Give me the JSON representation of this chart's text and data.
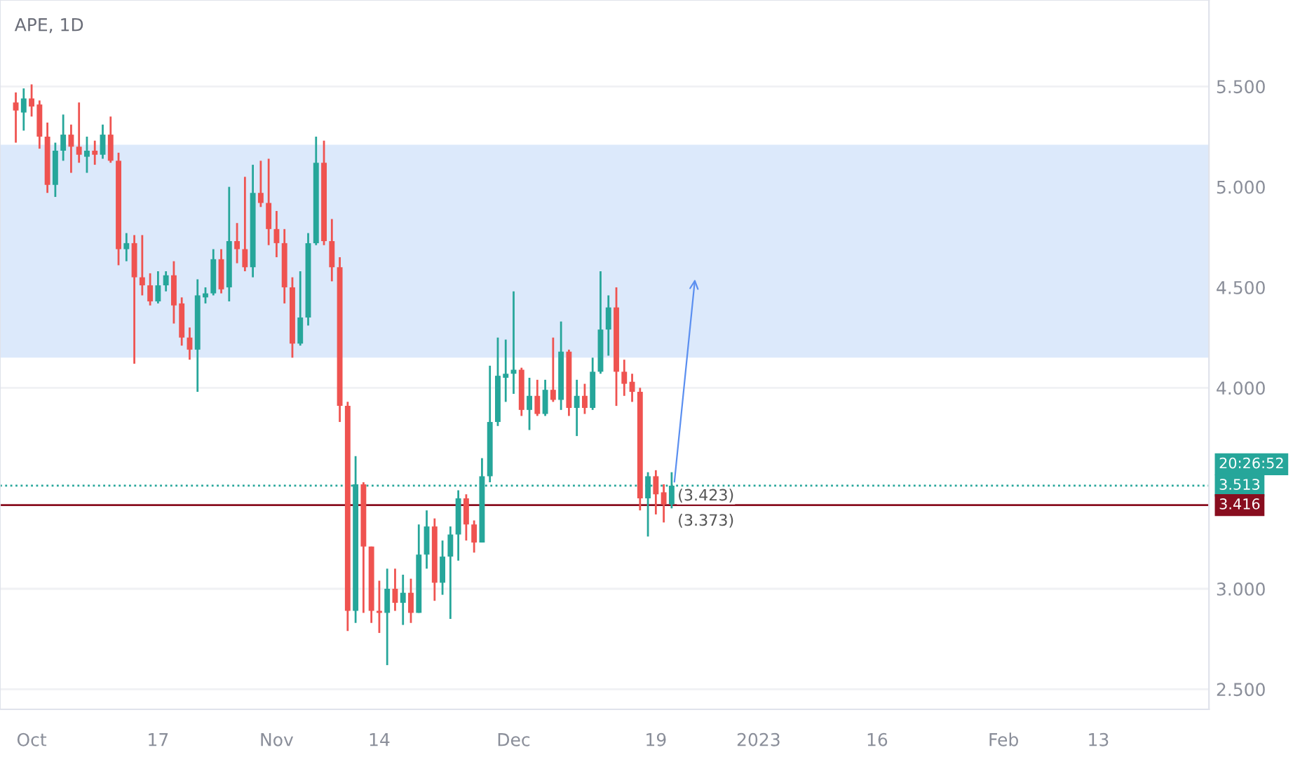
{
  "chart_data": {
    "type": "candlestick",
    "title": "APE, 1D",
    "x": [
      "2022-09-29",
      "2022-09-30",
      "2022-10-01",
      "2022-10-02",
      "2022-10-03",
      "2022-10-04",
      "2022-10-05",
      "2022-10-06",
      "2022-10-07",
      "2022-10-08",
      "2022-10-09",
      "2022-10-10",
      "2022-10-11",
      "2022-10-12",
      "2022-10-13",
      "2022-10-14",
      "2022-10-15",
      "2022-10-16",
      "2022-10-17",
      "2022-10-18",
      "2022-10-19",
      "2022-10-20",
      "2022-10-21",
      "2022-10-22",
      "2022-10-23",
      "2022-10-24",
      "2022-10-25",
      "2022-10-26",
      "2022-10-27",
      "2022-10-28",
      "2022-10-29",
      "2022-10-30",
      "2022-10-31",
      "2022-11-01",
      "2022-11-02",
      "2022-11-03",
      "2022-11-04",
      "2022-11-05",
      "2022-11-06",
      "2022-11-07",
      "2022-11-08",
      "2022-11-09",
      "2022-11-10",
      "2022-11-11",
      "2022-11-12",
      "2022-11-13",
      "2022-11-14",
      "2022-11-15",
      "2022-11-16",
      "2022-11-17",
      "2022-11-18",
      "2022-11-19",
      "2022-11-20",
      "2022-11-21",
      "2022-11-22",
      "2022-11-23",
      "2022-11-24",
      "2022-11-25",
      "2022-11-26",
      "2022-11-27",
      "2022-11-28",
      "2022-11-29",
      "2022-11-30",
      "2022-12-01",
      "2022-12-02",
      "2022-12-03",
      "2022-12-04",
      "2022-12-05",
      "2022-12-06",
      "2022-12-07",
      "2022-12-08",
      "2022-12-09",
      "2022-12-10",
      "2022-12-11",
      "2022-12-12",
      "2022-12-13",
      "2022-12-14",
      "2022-12-15",
      "2022-12-16",
      "2022-12-17",
      "2022-12-18",
      "2022-12-19",
      "2022-12-20",
      "2022-12-21"
    ],
    "ohlc": [
      [
        5.42,
        5.47,
        5.22,
        5.38
      ],
      [
        5.37,
        5.49,
        5.28,
        5.44
      ],
      [
        5.44,
        5.51,
        5.35,
        5.4
      ],
      [
        5.41,
        5.43,
        5.19,
        5.25
      ],
      [
        5.25,
        5.32,
        4.97,
        5.01
      ],
      [
        5.01,
        5.22,
        4.95,
        5.18
      ],
      [
        5.18,
        5.36,
        5.13,
        5.26
      ],
      [
        5.26,
        5.31,
        5.07,
        5.2
      ],
      [
        5.2,
        5.42,
        5.12,
        5.16
      ],
      [
        5.15,
        5.25,
        5.07,
        5.18
      ],
      [
        5.18,
        5.23,
        5.11,
        5.16
      ],
      [
        5.16,
        5.31,
        5.14,
        5.26
      ],
      [
        5.26,
        5.35,
        5.12,
        5.13
      ],
      [
        5.13,
        5.17,
        4.61,
        4.69
      ],
      [
        4.69,
        4.77,
        4.63,
        4.72
      ],
      [
        4.72,
        4.76,
        4.12,
        4.55
      ],
      [
        4.55,
        4.76,
        4.46,
        4.51
      ],
      [
        4.51,
        4.57,
        4.41,
        4.43
      ],
      [
        4.43,
        4.58,
        4.42,
        4.51
      ],
      [
        4.51,
        4.58,
        4.48,
        4.56
      ],
      [
        4.56,
        4.63,
        4.32,
        4.41
      ],
      [
        4.42,
        4.45,
        4.21,
        4.25
      ],
      [
        4.25,
        4.3,
        4.14,
        4.19
      ],
      [
        4.19,
        4.54,
        3.98,
        4.46
      ],
      [
        4.45,
        4.5,
        4.42,
        4.47
      ],
      [
        4.47,
        4.69,
        4.46,
        4.64
      ],
      [
        4.64,
        4.69,
        4.47,
        4.49
      ],
      [
        4.5,
        5.0,
        4.43,
        4.73
      ],
      [
        4.73,
        4.82,
        4.62,
        4.69
      ],
      [
        4.69,
        5.05,
        4.58,
        4.6
      ],
      [
        4.6,
        5.11,
        4.55,
        4.97
      ],
      [
        4.97,
        5.13,
        4.9,
        4.92
      ],
      [
        4.92,
        5.14,
        4.71,
        4.79
      ],
      [
        4.79,
        4.88,
        4.65,
        4.72
      ],
      [
        4.72,
        4.79,
        4.42,
        4.5
      ],
      [
        4.5,
        4.55,
        4.15,
        4.22
      ],
      [
        4.22,
        4.58,
        4.21,
        4.35
      ],
      [
        4.35,
        4.77,
        4.31,
        4.72
      ],
      [
        4.72,
        5.25,
        4.71,
        5.12
      ],
      [
        5.12,
        5.23,
        4.71,
        4.73
      ],
      [
        4.73,
        4.84,
        4.53,
        4.6
      ],
      [
        4.6,
        4.65,
        3.83,
        3.91
      ],
      [
        3.91,
        3.93,
        2.79,
        2.89
      ],
      [
        2.89,
        3.66,
        2.83,
        3.52
      ],
      [
        3.52,
        3.53,
        2.88,
        3.21
      ],
      [
        3.21,
        3.21,
        2.83,
        2.89
      ],
      [
        2.89,
        3.04,
        2.78,
        2.88
      ],
      [
        2.88,
        3.1,
        2.62,
        3.0
      ],
      [
        3.0,
        3.1,
        2.89,
        2.93
      ],
      [
        2.93,
        3.07,
        2.82,
        2.98
      ],
      [
        2.98,
        3.05,
        2.83,
        2.88
      ],
      [
        2.88,
        3.32,
        2.88,
        3.17
      ],
      [
        3.17,
        3.39,
        3.1,
        3.31
      ],
      [
        3.31,
        3.35,
        2.94,
        3.03
      ],
      [
        3.03,
        3.24,
        2.97,
        3.16
      ],
      [
        3.16,
        3.31,
        2.85,
        3.27
      ],
      [
        3.27,
        3.49,
        3.14,
        3.45
      ],
      [
        3.45,
        3.47,
        3.24,
        3.32
      ],
      [
        3.32,
        3.34,
        3.18,
        3.23
      ],
      [
        3.23,
        3.65,
        3.23,
        3.56
      ],
      [
        3.56,
        4.11,
        3.53,
        3.83
      ],
      [
        3.83,
        4.25,
        3.81,
        4.06
      ],
      [
        4.05,
        4.24,
        3.93,
        4.07
      ],
      [
        4.07,
        4.48,
        3.97,
        4.09
      ],
      [
        4.09,
        4.1,
        3.86,
        3.89
      ],
      [
        3.89,
        4.05,
        3.79,
        3.96
      ],
      [
        3.96,
        4.04,
        3.86,
        3.87
      ],
      [
        3.87,
        4.04,
        3.86,
        3.99
      ],
      [
        3.99,
        4.25,
        3.93,
        3.94
      ],
      [
        3.94,
        4.33,
        3.89,
        4.18
      ],
      [
        4.18,
        4.19,
        3.86,
        3.9
      ],
      [
        3.9,
        4.04,
        3.76,
        3.96
      ],
      [
        3.96,
        4.02,
        3.87,
        3.9
      ],
      [
        3.9,
        4.15,
        3.89,
        4.08
      ],
      [
        4.08,
        4.58,
        4.07,
        4.29
      ],
      [
        4.29,
        4.46,
        4.16,
        4.4
      ],
      [
        4.4,
        4.5,
        3.91,
        4.08
      ],
      [
        4.08,
        4.14,
        3.96,
        4.02
      ],
      [
        4.03,
        4.07,
        3.93,
        3.98
      ],
      [
        3.98,
        4.0,
        3.39,
        3.45
      ],
      [
        3.45,
        3.58,
        3.26,
        3.56
      ],
      [
        3.56,
        3.59,
        3.37,
        3.47
      ],
      [
        3.48,
        3.52,
        3.33,
        3.42
      ],
      [
        3.42,
        3.58,
        3.4,
        3.513
      ]
    ],
    "xlim": [
      "2022-09-27",
      "2023-02-27"
    ],
    "xticks": [
      {
        "value": "2022-10-01",
        "label": "Oct"
      },
      {
        "value": "2022-10-17",
        "label": "17"
      },
      {
        "value": "2022-11-01",
        "label": "Nov"
      },
      {
        "value": "2022-11-14",
        "label": "14"
      },
      {
        "value": "2022-12-01",
        "label": "Dec"
      },
      {
        "value": "2022-12-19",
        "label": "19"
      },
      {
        "value": "2023-01-01",
        "label": "2023"
      },
      {
        "value": "2023-01-16",
        "label": "16"
      },
      {
        "value": "2023-02-01",
        "label": "Feb"
      },
      {
        "value": "2023-02-13",
        "label": "13"
      }
    ],
    "ylim": [
      2.4,
      5.93
    ],
    "yticks": [
      {
        "value": 2.5,
        "label": "2.500"
      },
      {
        "value": 3,
        "label": "3.000"
      },
      {
        "value": 4,
        "label": "4.000"
      },
      {
        "value": 4.5,
        "label": "4.500"
      },
      {
        "value": 5,
        "label": "5.000"
      },
      {
        "value": 5.5,
        "label": "5.500"
      }
    ],
    "grid": "y",
    "bands": [
      {
        "axis": "y",
        "from": 4.15,
        "to": 5.21,
        "color": "#dce9fb"
      }
    ],
    "ref_lines": [
      {
        "axis": "y",
        "value": 3.513,
        "label": "3.513",
        "color": "#26a69a",
        "line_style": "dotted"
      },
      {
        "axis": "y",
        "value": 3.416,
        "label": "3.416",
        "color": "#880e1f",
        "line_style": "solid"
      }
    ],
    "annotations": [
      {
        "text": "(3.423)",
        "x": "2022-12-21",
        "y": 3.423
      },
      {
        "text": "(3.373)",
        "x": "2022-12-21",
        "y": 3.373
      },
      "20:26:52"
    ]
  }
}
